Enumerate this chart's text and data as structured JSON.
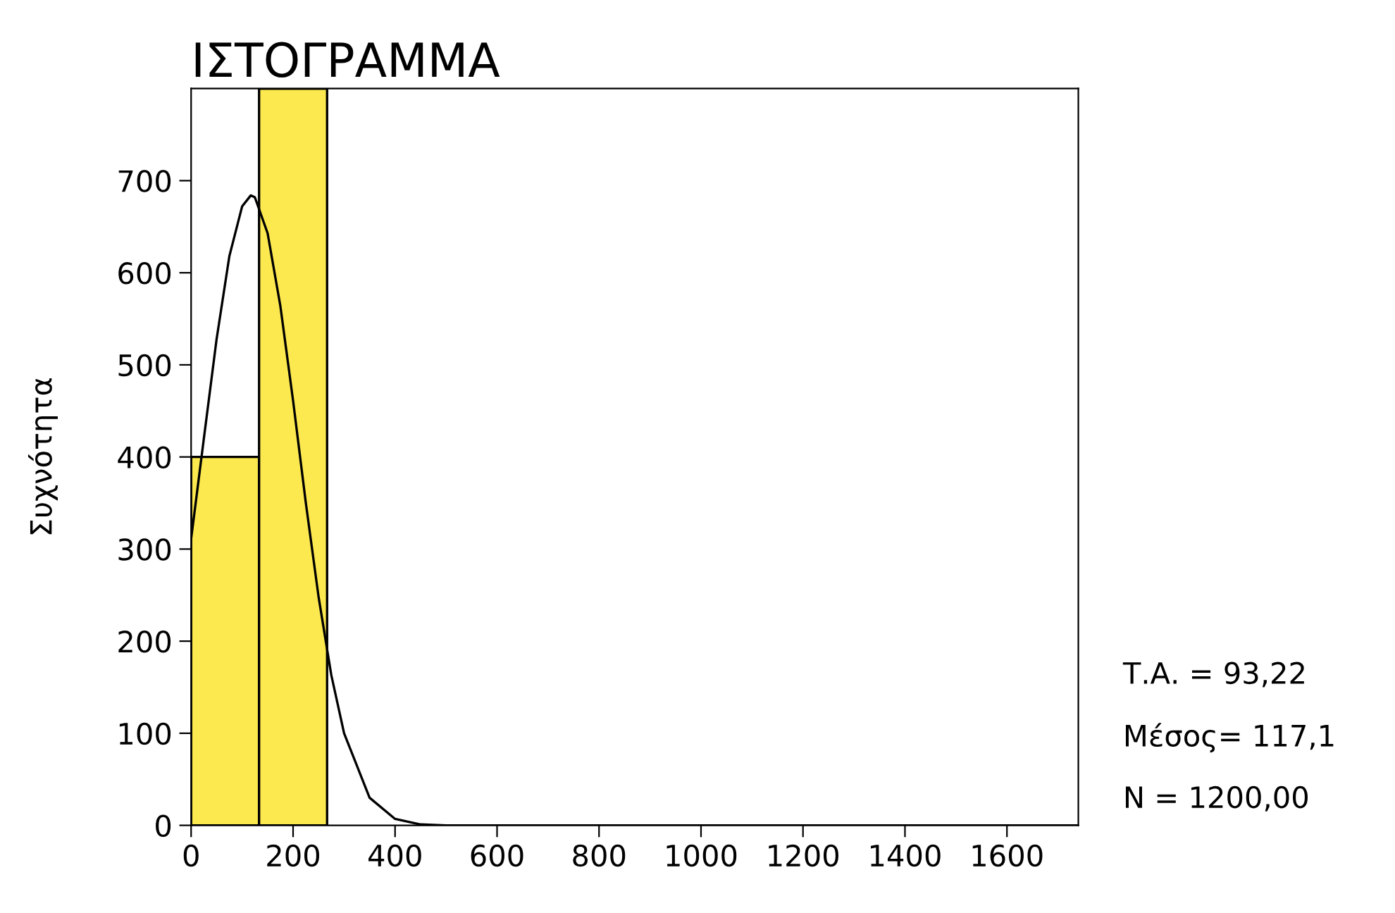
{
  "chart_data": {
    "type": "histogram",
    "title": "ΙΣΤΟΓΡΑΜΜΑ",
    "ylabel": "Συχνότητα",
    "bins": [
      0,
      133.3,
      266.7
    ],
    "values": [
      400,
      800
    ],
    "color": "#fce94f",
    "series": [
      {
        "type": "line",
        "color": "#000000",
        "x": [
          0,
          25,
          50,
          75,
          100,
          117,
          125,
          150,
          175,
          200,
          225,
          250,
          275,
          300,
          350,
          400,
          450,
          500,
          1740
        ],
        "values": [
          311,
          420,
          528,
          618,
          672,
          684,
          682,
          643,
          564,
          461,
          350,
          248,
          163,
          100,
          30,
          7,
          1,
          0,
          0
        ]
      }
    ],
    "xlim": [
      0,
      1740
    ],
    "ylim": [
      0,
      800
    ],
    "xticks": [
      0,
      200,
      400,
      600,
      800,
      1000,
      1200,
      1400,
      1600
    ],
    "yticks": [
      0,
      100,
      200,
      300,
      400,
      500,
      600,
      700
    ],
    "grid": false,
    "legend": false,
    "annotations": [
      "Τ.Α. = 93,22",
      "Μέσος= 117,1",
      "N = 1200,00"
    ]
  }
}
